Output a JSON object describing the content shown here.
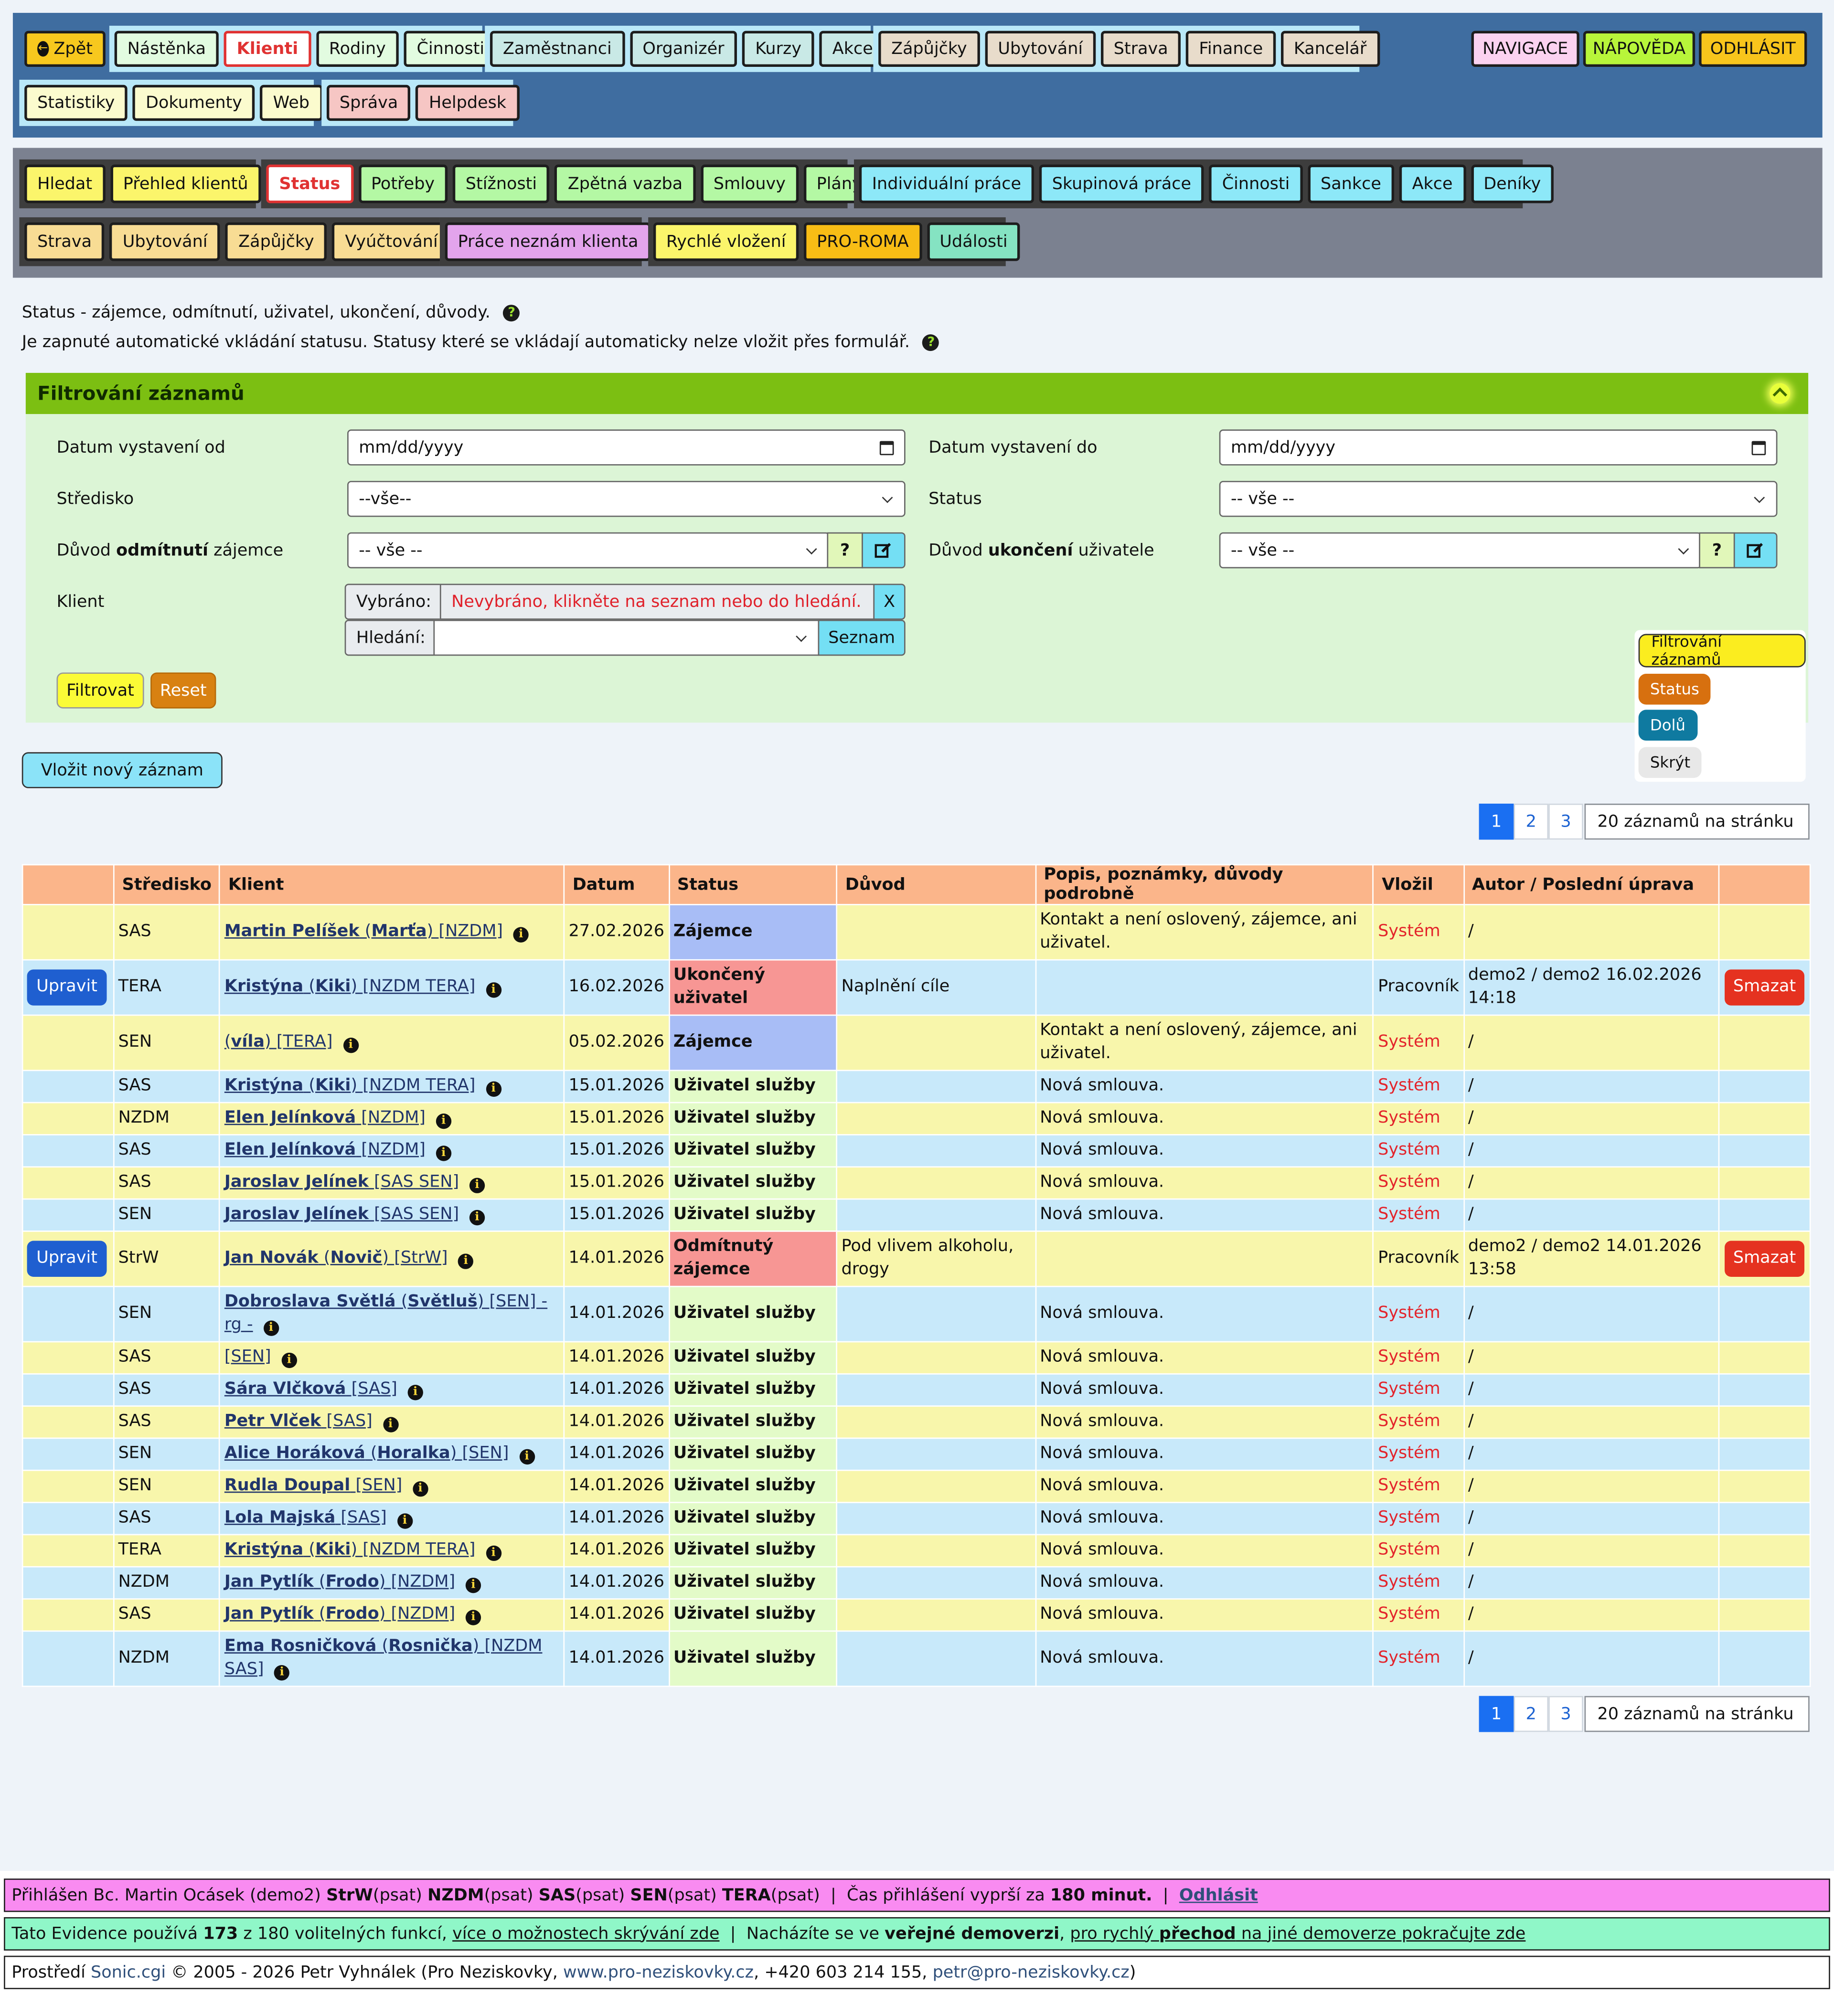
{
  "top_nav": {
    "back": "Zpět",
    "group1": [
      "Nástěnka",
      "Klienti",
      "Rodiny",
      "Činnosti"
    ],
    "group2": [
      "Zaměstnanci",
      "Organizér",
      "Kurzy",
      "Akce"
    ],
    "group3": [
      "Zápůjčky",
      "Ubytování",
      "Strava",
      "Finance",
      "Kancelář"
    ],
    "group4": [
      "Statistiky",
      "Dokumenty",
      "Web"
    ],
    "group5": [
      "Správa",
      "Helpdesk"
    ],
    "navigace": "NAVIGACE",
    "napoveda": "NÁPOVĚDA",
    "odhlasit": "ODHLÁSIT"
  },
  "sub_nav": {
    "group1": [
      "Hledat",
      "Přehled klientů"
    ],
    "group2": [
      "Status",
      "Potřeby",
      "Stížnosti",
      "Zpětná vazba",
      "Smlouvy",
      "Plány"
    ],
    "group3": [
      "Individuální práce",
      "Skupinová práce",
      "Činnosti",
      "Sankce",
      "Akce",
      "Deníky"
    ],
    "group4": [
      "Strava",
      "Ubytování",
      "Zápůjčky",
      "Vyúčtování"
    ],
    "group5": [
      "Práce neznám klienta"
    ],
    "group6": [
      "Rychlé vložení",
      "PRO-ROMA",
      "Události"
    ]
  },
  "info": {
    "line1": "Status - zájemce, odmítnutí, uživatel, ukončení, důvody.",
    "line2": "Je zapnuté automatické vkládání statusu. Statusy které se vkládají automaticky nelze vložit přes formulář."
  },
  "filter": {
    "title": "Filtrování záznamů",
    "date_from_label": "Datum vystavení od",
    "date_to_label": "Datum vystavení do",
    "date_placeholder": "mm/dd/yyyy",
    "stredisko_label": "Středisko",
    "stredisko_value": "--vše--",
    "status_label": "Status",
    "status_value": "-- vše --",
    "duvod_odm_label_pre": "Důvod ",
    "duvod_odm_label_bold": "odmítnutí",
    "duvod_odm_label_post": " zájemce",
    "duvod_odm_value": "-- vše --",
    "duvod_uk_label_pre": "Důvod ",
    "duvod_uk_label_bold": "ukončení",
    "duvod_uk_label_post": " uživatele",
    "duvod_uk_value": "-- vše --",
    "q_label": "?",
    "klient_label": "Klient",
    "vybrano_label": "Vybráno:",
    "vybrano_value": "Nevybráno, klikněte na seznam nebo do hledání.",
    "x_label": "X",
    "hledani_label": "Hledání:",
    "seznam_label": "Seznam",
    "filtrovat": "Filtrovat",
    "reset": "Reset"
  },
  "floater": [
    "Filtrování záznamů",
    "Status",
    "Dolů",
    "Skrýt"
  ],
  "new_record": "Vložit nový záznam",
  "pagination": {
    "pages": [
      "1",
      "2",
      "3"
    ],
    "per_page": "20 záznamů na stránku"
  },
  "table": {
    "headers": [
      "",
      "Středisko",
      "Klient",
      "Datum",
      "Status",
      "Důvod",
      "Popis, poznámky, důvody podrobně",
      "Vložil",
      "Autor / Poslední úprava",
      ""
    ],
    "edit_label": "Upravit",
    "delete_label": "Smazat",
    "rows": [
      {
        "edit": false,
        "stredisko": "SAS",
        "name": "Martin Pelíšek",
        "nick": "Marťa",
        "tag": "[NZDM]",
        "datum": "27.02.2026",
        "status": "Zájemce",
        "kind": "zaj",
        "duvod": "",
        "popis": "Kontakt a není oslovený, zájemce, ani uživatel.",
        "vlozil": "Systém",
        "autor": "/"
      },
      {
        "edit": true,
        "stredisko": "TERA",
        "name": "Kristýna",
        "nick": "Kiki",
        "tag": "[NZDM TERA]",
        "datum": "16.02.2026",
        "status": "Ukončený uživatel",
        "kind": "red",
        "duvod": "Naplnění cíle",
        "popis": "",
        "vlozil": "Pracovník",
        "autor": "demo2 / demo2 16.02.2026 14:18"
      },
      {
        "edit": false,
        "stredisko": "SEN",
        "name": "",
        "nick": "víla",
        "tag": "[TERA]",
        "datum": "05.02.2026",
        "status": "Zájemce",
        "kind": "zaj",
        "duvod": "",
        "popis": "Kontakt a není oslovený, zájemce, ani uživatel.",
        "vlozil": "Systém",
        "autor": "/"
      },
      {
        "edit": false,
        "stredisko": "SAS",
        "name": "Kristýna",
        "nick": "Kiki",
        "tag": "[NZDM TERA]",
        "datum": "15.01.2026",
        "status": "Uživatel služby",
        "kind": "usr",
        "duvod": "",
        "popis": "Nová smlouva.",
        "vlozil": "Systém",
        "autor": "/"
      },
      {
        "edit": false,
        "stredisko": "NZDM",
        "name": "Elen Jelínková",
        "nick": "",
        "tag": "[NZDM]",
        "datum": "15.01.2026",
        "status": "Uživatel služby",
        "kind": "usr",
        "duvod": "",
        "popis": "Nová smlouva.",
        "vlozil": "Systém",
        "autor": "/"
      },
      {
        "edit": false,
        "stredisko": "SAS",
        "name": "Elen Jelínková",
        "nick": "",
        "tag": "[NZDM]",
        "datum": "15.01.2026",
        "status": "Uživatel služby",
        "kind": "usr",
        "duvod": "",
        "popis": "Nová smlouva.",
        "vlozil": "Systém",
        "autor": "/"
      },
      {
        "edit": false,
        "stredisko": "SAS",
        "name": "Jaroslav Jelínek",
        "nick": "",
        "tag": "[SAS SEN]",
        "datum": "15.01.2026",
        "status": "Uživatel služby",
        "kind": "usr",
        "duvod": "",
        "popis": "Nová smlouva.",
        "vlozil": "Systém",
        "autor": "/"
      },
      {
        "edit": false,
        "stredisko": "SEN",
        "name": "Jaroslav Jelínek",
        "nick": "",
        "tag": "[SAS SEN]",
        "datum": "15.01.2026",
        "status": "Uživatel služby",
        "kind": "usr",
        "duvod": "",
        "popis": "Nová smlouva.",
        "vlozil": "Systém",
        "autor": "/"
      },
      {
        "edit": true,
        "stredisko": "StrW",
        "name": "Jan Novák",
        "nick": "Novič",
        "tag": "[StrW]",
        "datum": "14.01.2026",
        "status": "Odmítnutý zájemce",
        "kind": "red",
        "duvod": "Pod vlivem alkoholu, drogy",
        "popis": "",
        "vlozil": "Pracovník",
        "autor": "demo2 / demo2 14.01.2026 13:58"
      },
      {
        "edit": false,
        "stredisko": "SEN",
        "name": "Dobroslava Světlá",
        "nick": "Světluš",
        "tag": "[SEN] - rg -",
        "datum": "14.01.2026",
        "status": "Uživatel služby",
        "kind": "usr",
        "duvod": "",
        "popis": "Nová smlouva.",
        "vlozil": "Systém",
        "autor": "/"
      },
      {
        "edit": false,
        "stredisko": "SAS",
        "name": "",
        "nick": "",
        "tag": "[SEN]",
        "datum": "14.01.2026",
        "status": "Uživatel služby",
        "kind": "usr",
        "duvod": "",
        "popis": "Nová smlouva.",
        "vlozil": "Systém",
        "autor": "/"
      },
      {
        "edit": false,
        "stredisko": "SAS",
        "name": "Sára Vlčková",
        "nick": "",
        "tag": "[SAS]",
        "datum": "14.01.2026",
        "status": "Uživatel služby",
        "kind": "usr",
        "duvod": "",
        "popis": "Nová smlouva.",
        "vlozil": "Systém",
        "autor": "/"
      },
      {
        "edit": false,
        "stredisko": "SAS",
        "name": "Petr Vlček",
        "nick": "",
        "tag": "[SAS]",
        "datum": "14.01.2026",
        "status": "Uživatel služby",
        "kind": "usr",
        "duvod": "",
        "popis": "Nová smlouva.",
        "vlozil": "Systém",
        "autor": "/"
      },
      {
        "edit": false,
        "stredisko": "SEN",
        "name": "Alice Horáková",
        "nick": "Horalka",
        "tag": "[SEN]",
        "datum": "14.01.2026",
        "status": "Uživatel služby",
        "kind": "usr",
        "duvod": "",
        "popis": "Nová smlouva.",
        "vlozil": "Systém",
        "autor": "/"
      },
      {
        "edit": false,
        "stredisko": "SEN",
        "name": "Rudla Doupal",
        "nick": "",
        "tag": "[SEN]",
        "datum": "14.01.2026",
        "status": "Uživatel služby",
        "kind": "usr",
        "duvod": "",
        "popis": "Nová smlouva.",
        "vlozil": "Systém",
        "autor": "/"
      },
      {
        "edit": false,
        "stredisko": "SAS",
        "name": "Lola Majská",
        "nick": "",
        "tag": "[SAS]",
        "datum": "14.01.2026",
        "status": "Uživatel služby",
        "kind": "usr",
        "duvod": "",
        "popis": "Nová smlouva.",
        "vlozil": "Systém",
        "autor": "/"
      },
      {
        "edit": false,
        "stredisko": "TERA",
        "name": "Kristýna",
        "nick": "Kiki",
        "tag": "[NZDM TERA]",
        "datum": "14.01.2026",
        "status": "Uživatel služby",
        "kind": "usr",
        "duvod": "",
        "popis": "Nová smlouva.",
        "vlozil": "Systém",
        "autor": "/"
      },
      {
        "edit": false,
        "stredisko": "NZDM",
        "name": "Jan Pytlík",
        "nick": "Frodo",
        "tag": "[NZDM]",
        "datum": "14.01.2026",
        "status": "Uživatel služby",
        "kind": "usr",
        "duvod": "",
        "popis": "Nová smlouva.",
        "vlozil": "Systém",
        "autor": "/"
      },
      {
        "edit": false,
        "stredisko": "SAS",
        "name": "Jan Pytlík",
        "nick": "Frodo",
        "tag": "[NZDM]",
        "datum": "14.01.2026",
        "status": "Uživatel služby",
        "kind": "usr",
        "duvod": "",
        "popis": "Nová smlouva.",
        "vlozil": "Systém",
        "autor": "/"
      },
      {
        "edit": false,
        "stredisko": "NZDM",
        "name": "Ema Rosničková",
        "nick": "Rosnička",
        "tag": "[NZDM SAS]",
        "datum": "14.01.2026",
        "status": "Uživatel služby",
        "kind": "usr",
        "duvod": "",
        "popis": "Nová smlouva.",
        "vlozil": "Systém",
        "autor": "/"
      }
    ]
  },
  "footer": {
    "login_prefix": "Přihlášen Bc. Martin Ocásek (demo2) ",
    "login_units": [
      {
        "name": "StrW",
        "role": " (psat) "
      },
      {
        "name": "NZDM",
        "role": " (psat) "
      },
      {
        "name": "SAS",
        "role": " (psat) "
      },
      {
        "name": "SEN",
        "role": " (psat) "
      },
      {
        "name": "TERA",
        "role": " (psat)"
      }
    ],
    "login_expire_pre": "  |  Čas přihlášení vyprší za ",
    "login_expire_val": "180 minut.",
    "login_sep": "  |  ",
    "logout": "Odhlásit",
    "ev_pre": "Tato Evidence používá ",
    "ev_count": "173",
    "ev_mid": " z 180 volitelných funkcí, ",
    "ev_link": "více o možnostech skrývání zde",
    "ev_sep": "  |  Nacházíte se ve ",
    "ev_bold": "veřejné demoverzi",
    "ev_comma": ", ",
    "ev_link2_pre": "pro rychlý ",
    "ev_link2_bold": "přechod",
    "ev_link2_post": " na jiné demoverze pokračujte zde",
    "env_pre": "Prostředí ",
    "env_link": "Sonic.cgi",
    "env_mid": " © 2005 - 2026 Petr Vyhnálek (Pro Neziskovky, ",
    "env_web": "www.pro-neziskovky.cz",
    "env_phone": ", +420 603 214 155, ",
    "env_mail": "petr@pro-neziskovky.cz",
    "env_end": ")"
  },
  "colors": {
    "topnav_bg": "#3f6da0",
    "subnav_bg": "#7b8190",
    "filter_head": "#7cbf12",
    "filter_bg": "#dcf5d6",
    "table_head": "#fbb58a",
    "row_yellow": "#f8f6ab",
    "row_blue": "#c8e9fa",
    "footer_pink": "#f98bf1",
    "footer_green": "#8ff7c8"
  }
}
